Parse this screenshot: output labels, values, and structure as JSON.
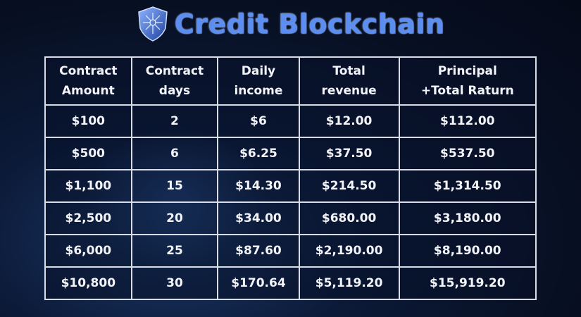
{
  "header": {
    "title": "Credit Blockchain",
    "logo_icon": "shield-circuit-icon"
  },
  "table": {
    "columns": [
      [
        "Contract",
        "Amount"
      ],
      [
        "Contract",
        "days"
      ],
      [
        "Daily",
        "income"
      ],
      [
        "Total",
        "revenue"
      ],
      [
        "Principal",
        "+Total Raturn"
      ]
    ],
    "rows": [
      [
        "$100",
        "2",
        "$6",
        "$12.00",
        "$112.00"
      ],
      [
        "$500",
        "6",
        "$6.25",
        "$37.50",
        "$537.50"
      ],
      [
        "$1,100",
        "15",
        "$14.30",
        "$214.50",
        "$1,314.50"
      ],
      [
        "$2,500",
        "20",
        "$34.00",
        "$680.00",
        "$3,180.00"
      ],
      [
        "$6,000",
        "25",
        "$87.60",
        "$2,190.00",
        "$8,190.00"
      ],
      [
        "$10,800",
        "30",
        "$170.64",
        "$5,119.20",
        "$15,919.20"
      ]
    ]
  }
}
